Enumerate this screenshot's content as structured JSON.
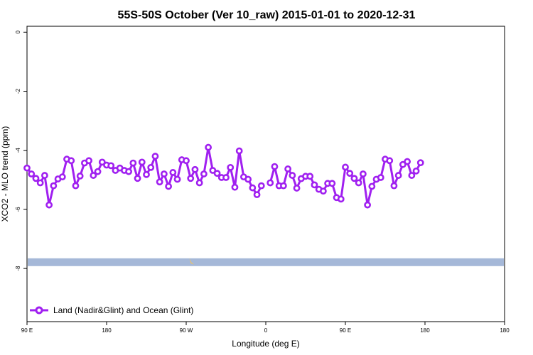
{
  "chart_data": {
    "type": "line",
    "title": "55S-50S October (Ver 10_raw)   2015-01-01 to 2020-12-31",
    "xlabel": "Longitude (deg E)",
    "ylabel": "XCO2 - MLO trend (ppm)",
    "xlim": [
      90,
      630
    ],
    "ylim": [
      -9.8,
      0.2
    ],
    "x_ticks": [
      {
        "value": 90,
        "label": "90 E"
      },
      {
        "value": 180,
        "label": "180"
      },
      {
        "value": 270,
        "label": "90 W"
      },
      {
        "value": 360,
        "label": "0"
      },
      {
        "value": 450,
        "label": "90 E"
      },
      {
        "value": 540,
        "label": "180"
      }
    ],
    "y_ticks": [
      {
        "value": 0,
        "label": "0"
      },
      {
        "value": -2,
        "label": "-2"
      },
      {
        "value": -4,
        "label": "-4"
      },
      {
        "value": -6,
        "label": "-6"
      },
      {
        "value": -8,
        "label": "-8"
      }
    ],
    "grid": false,
    "legend_position": "bottom-left",
    "series": [
      {
        "name": "Land (Nadir&Glint) and Ocean (Glint)",
        "color": "#a020f0",
        "x": [
          90,
          95,
          100,
          105,
          110,
          115,
          120,
          125,
          130,
          135,
          140,
          145,
          150,
          155,
          160,
          165,
          170,
          175,
          180,
          185,
          190,
          195,
          200,
          205,
          210,
          215,
          220,
          225,
          230,
          235,
          240,
          245,
          250,
          255,
          260,
          265,
          270,
          275,
          280,
          285,
          290,
          295,
          300,
          305,
          310,
          315,
          320,
          325,
          330,
          335,
          340,
          345,
          350,
          355,
          360,
          365,
          370,
          375,
          380,
          385,
          390,
          395,
          400,
          405,
          410,
          415,
          420,
          425,
          430,
          435,
          440,
          445,
          450,
          455,
          460,
          465,
          470,
          475,
          480,
          485,
          490,
          495,
          500,
          505,
          510,
          515,
          520,
          525,
          530,
          535,
          540
        ],
        "y": [
          -4.6,
          -4.8,
          -4.95,
          -5.1,
          -4.85,
          -5.85,
          -5.2,
          -4.97,
          -4.9,
          -4.3,
          -4.35,
          -5.2,
          -4.87,
          -4.43,
          -4.35,
          -4.85,
          -4.72,
          -4.4,
          -4.5,
          -4.52,
          -4.68,
          -4.6,
          -4.68,
          -4.72,
          -4.43,
          -4.95,
          -4.4,
          -4.82,
          -4.58,
          -4.2,
          -5.07,
          -4.8,
          -5.22,
          -4.75,
          -4.98,
          -4.32,
          -4.35,
          -4.95,
          -4.65,
          -5.1,
          -4.8,
          -3.9,
          -4.68,
          -4.78,
          -4.92,
          -4.92,
          -4.58,
          -5.25,
          -4.02,
          -4.9,
          -4.98,
          -5.27,
          -5.5,
          -5.2,
          null,
          -5.1,
          -4.55,
          -5.2,
          -5.2,
          -4.63,
          -4.85,
          -5.28,
          -4.96,
          -4.88,
          -4.88,
          -5.17,
          -5.32,
          -5.38,
          -5.12,
          -5.12,
          -5.6,
          -5.65,
          -4.57,
          -4.78,
          -4.95,
          -5.1,
          -4.8,
          -5.85,
          -5.22,
          -4.98,
          -4.92,
          -4.3,
          -4.35,
          -5.2,
          -4.85,
          -4.48,
          -4.38,
          -4.85,
          -4.7,
          -4.42,
          null
        ]
      }
    ],
    "band": {
      "y": -7.8,
      "color": "#a5b8d8",
      "highlight_color": "#f5c45a"
    }
  }
}
